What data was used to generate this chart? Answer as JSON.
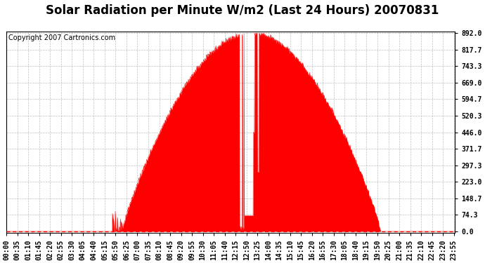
{
  "title": "Solar Radiation per Minute W/m2 (Last 24 Hours) 20070831",
  "copyright_text": "Copyright 2007 Cartronics.com",
  "bg_color": "#ffffff",
  "plot_bg_color": "#ffffff",
  "fill_color": "#ff0000",
  "line_color": "#ff0000",
  "dashed_line_color": "#ff0000",
  "grid_color": "#b0b0b0",
  "ytick_labels": [
    0.0,
    74.3,
    148.7,
    223.0,
    297.3,
    371.7,
    446.0,
    520.3,
    594.7,
    669.0,
    743.3,
    817.7,
    892.0
  ],
  "ymax": 892.0,
  "ymin": 0.0,
  "title_fontsize": 12,
  "copyright_fontsize": 7,
  "axis_label_fontsize": 7
}
